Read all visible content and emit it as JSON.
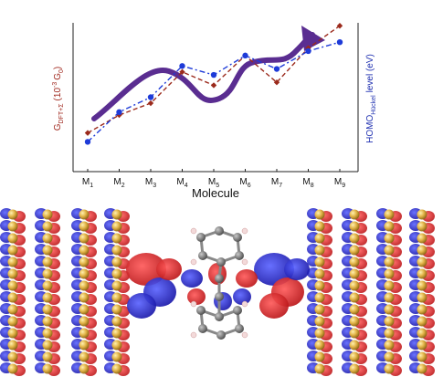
{
  "chart_data": {
    "type": "line",
    "categories": [
      "M1",
      "M2",
      "M3",
      "M4",
      "M5",
      "M6",
      "M7",
      "M8",
      "M9"
    ],
    "xlabel": "Molecule",
    "ylabel_left_main": "G",
    "ylabel_left_sub": "DFT+Σ",
    "ylabel_left_unit": "(10",
    "ylabel_left_exp": "-3",
    "ylabel_left_unit_tail": "G",
    "ylabel_left_unit_sub": "0",
    "ylabel_left_close": ")",
    "ylabel_right_main": "HOMO",
    "ylabel_right_sub": "Hückel",
    "ylabel_right_tail": "level (eV)",
    "ylim": [
      0,
      100
    ],
    "grid": false,
    "series": [
      {
        "color": "#9b2a1c",
        "marker": "diamond",
        "dash": "5,3",
        "values": [
          26,
          38,
          46,
          67,
          58,
          78,
          60,
          83,
          98
        ]
      },
      {
        "color": "#1e3bd8",
        "marker": "circle",
        "dash": "6,3,2,3",
        "values": [
          20,
          40,
          50,
          71,
          65,
          78,
          69,
          81,
          87
        ]
      }
    ],
    "trend_arrow_color": "#5a2d91"
  }
}
